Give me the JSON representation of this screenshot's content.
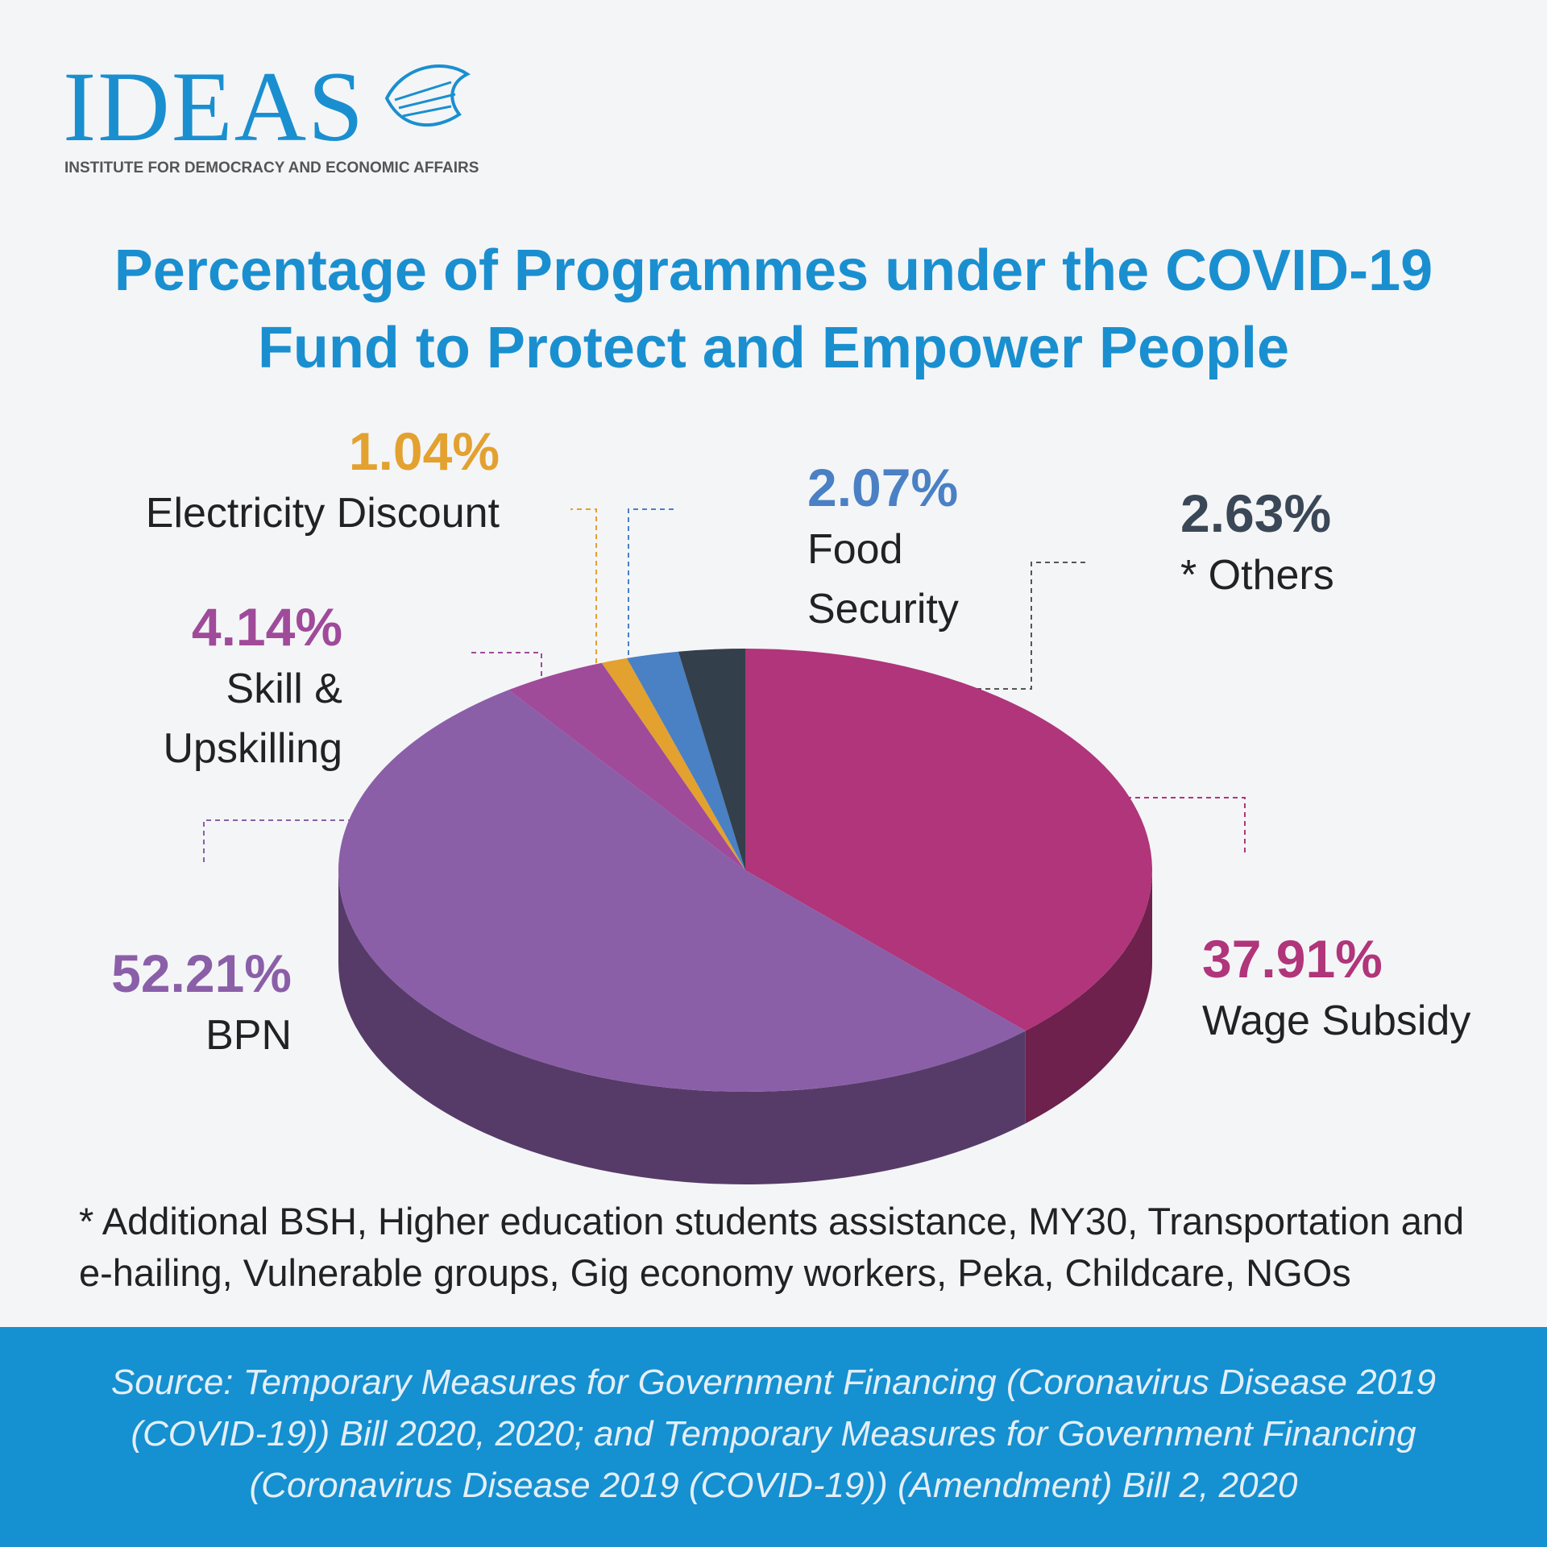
{
  "header": {
    "logo": "IDEAS",
    "subtitle": "INSTITUTE FOR DEMOCRACY AND ECONOMIC AFFAIRS"
  },
  "chart_data": {
    "type": "pie",
    "title": "Percentage of Programmes under the COVID-19 Fund to Protect and Empower People",
    "categories": [
      "Wage Subsidy",
      "BPN",
      "Skill & Upskilling",
      "Electricity Discount",
      "Food Security",
      "* Others"
    ],
    "values": [
      37.91,
      52.21,
      4.14,
      1.04,
      2.07,
      2.63
    ],
    "value_labels": [
      "37.91%",
      "52.21%",
      "4.14%",
      "1.04%",
      "2.07%",
      "2.63%"
    ],
    "colors": [
      "#b0357a",
      "#8a5fa8",
      "#a04a9a",
      "#e3a12f",
      "#4a80c4",
      "#333f4a"
    ]
  },
  "footnote": "* Additional BSH, Higher education students assistance, MY30, Transportation and e-hailing, Vulnerable groups, Gig economy workers, Peka, Childcare, NGOs",
  "source": "Source: Temporary Measures for Government Financing (Coronavirus Disease 2019 (COVID-19)) Bill 2020, 2020; and Temporary Measures for Government Financing (Coronavirus Disease 2019 (COVID-19)) (Amendment) Bill 2, 2020"
}
